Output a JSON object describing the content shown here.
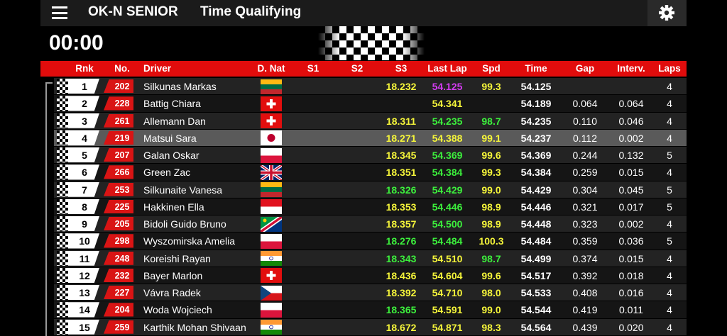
{
  "header": {
    "category": "OK-N SENIOR",
    "session": "Time Qualifying",
    "timer": "00:00"
  },
  "table": {
    "columns": [
      "Rnk",
      "No.",
      "Driver",
      "D. Nat",
      "S1",
      "S2",
      "S3",
      "Last Lap",
      "Spd",
      "Time",
      "Gap",
      "Interv.",
      "Laps"
    ],
    "selected_row": 3,
    "rows": [
      {
        "cells": [
          "1",
          "202",
          "Silkunas Markas",
          null,
          null,
          null,
          "18.232",
          "54.125",
          "99.3",
          "54.125",
          null,
          null,
          "4"
        ],
        "colors": [
          "#f5f53a",
          "#d23cf0",
          "#f5f53a"
        ]
      },
      {
        "cells": [
          "2",
          "228",
          "Battig Chiara",
          null,
          null,
          null,
          null,
          "54.341",
          null,
          "54.189",
          "0.064",
          "0.064",
          "4"
        ],
        "colors": [
          "#f5f53a",
          "#f5f53a",
          "#f5f53a"
        ]
      },
      {
        "cells": [
          "3",
          "261",
          "Allemann Dan",
          null,
          null,
          null,
          "18.311",
          "54.235",
          "98.7",
          "54.235",
          "0.110",
          "0.046",
          "4"
        ],
        "colors": [
          "#f5f53a",
          "#3cf03c",
          "#3cf03c"
        ]
      },
      {
        "cells": [
          "4",
          "219",
          "Matsui Sara",
          null,
          null,
          null,
          "18.271",
          "54.388",
          "99.1",
          "54.237",
          "0.112",
          "0.002",
          "4"
        ],
        "colors": [
          "#f5f53a",
          "#f5f53a",
          "#f5f53a"
        ]
      },
      {
        "cells": [
          "5",
          "207",
          "Galan Oskar",
          null,
          null,
          null,
          "18.345",
          "54.369",
          "99.6",
          "54.369",
          "0.244",
          "0.132",
          "5"
        ],
        "colors": [
          "#f5f53a",
          "#3cf03c",
          "#f5f53a"
        ]
      },
      {
        "cells": [
          "6",
          "266",
          "Green Zac",
          null,
          null,
          null,
          "18.351",
          "54.384",
          "99.3",
          "54.384",
          "0.259",
          "0.015",
          "4"
        ],
        "colors": [
          "#f5f53a",
          "#3cf03c",
          "#f5f53a"
        ]
      },
      {
        "cells": [
          "7",
          "253",
          "Silkunaite Vanesa",
          null,
          null,
          null,
          "18.326",
          "54.429",
          "99.0",
          "54.429",
          "0.304",
          "0.045",
          "5"
        ],
        "colors": [
          "#3cf03c",
          "#3cf03c",
          "#f5f53a"
        ]
      },
      {
        "cells": [
          "8",
          "225",
          "Hakkinen Ella",
          null,
          null,
          null,
          "18.353",
          "54.446",
          "98.9",
          "54.446",
          "0.321",
          "0.017",
          "5"
        ],
        "colors": [
          "#f5f53a",
          "#3cf03c",
          "#f5f53a"
        ]
      },
      {
        "cells": [
          "9",
          "205",
          "Bidoli Guido Bruno",
          null,
          null,
          null,
          "18.357",
          "54.500",
          "98.9",
          "54.448",
          "0.323",
          "0.002",
          "4"
        ],
        "colors": [
          "#f5f53a",
          "#3cf03c",
          "#f5f53a"
        ]
      },
      {
        "cells": [
          "10",
          "298",
          "Wyszomirska Amelia",
          null,
          null,
          null,
          "18.276",
          "54.484",
          "100.3",
          "54.484",
          "0.359",
          "0.036",
          "5"
        ],
        "colors": [
          "#3cf03c",
          "#3cf03c",
          "#f5f53a"
        ]
      },
      {
        "cells": [
          "11",
          "248",
          "Koreishi Rayan",
          null,
          null,
          null,
          "18.343",
          "54.510",
          "98.7",
          "54.499",
          "0.374",
          "0.015",
          "4"
        ],
        "colors": [
          "#3cf03c",
          "#f5f53a",
          "#3cf03c"
        ]
      },
      {
        "cells": [
          "12",
          "232",
          "Bayer Marlon",
          null,
          null,
          null,
          "18.436",
          "54.604",
          "99.6",
          "54.517",
          "0.392",
          "0.018",
          "4"
        ],
        "colors": [
          "#f5f53a",
          "#f5f53a",
          "#f5f53a"
        ]
      },
      {
        "cells": [
          "13",
          "227",
          "Vávra Radek",
          null,
          null,
          null,
          "18.392",
          "54.710",
          "98.0",
          "54.533",
          "0.408",
          "0.016",
          "4"
        ],
        "colors": [
          "#f5f53a",
          "#f5f53a",
          "#f5f53a"
        ]
      },
      {
        "cells": [
          "14",
          "204",
          "Woda Wojciech",
          null,
          null,
          null,
          "18.365",
          "54.591",
          "99.0",
          "54.544",
          "0.419",
          "0.011",
          "4"
        ],
        "colors": [
          "#3cf03c",
          "#f5f53a",
          "#f5f53a"
        ]
      },
      {
        "cells": [
          "15",
          "259",
          "Karthik Mohan Shivaan",
          null,
          null,
          null,
          "18.672",
          "54.871",
          "98.3",
          "54.564",
          "0.439",
          "0.020",
          "4"
        ],
        "colors": [
          "#f5f53a",
          "#f5f53a",
          "#f5f53a"
        ]
      }
    ]
  }
}
